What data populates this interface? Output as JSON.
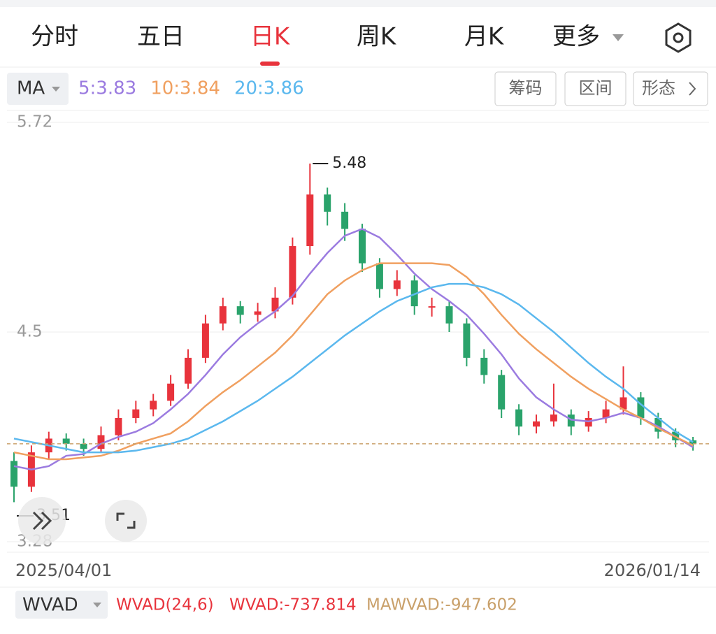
{
  "tabs": [
    "分时",
    "五日",
    "日K",
    "周K",
    "月K",
    "更多"
  ],
  "active_tab": 2,
  "ma_selector": "MA",
  "tools": [
    "筹码",
    "区间",
    "形态"
  ],
  "chart_data": {
    "type": "candlestick",
    "ylim": [
      3.28,
      5.72
    ],
    "yticks": [
      3.28,
      4.5,
      5.72
    ],
    "x_labels": [
      "2025/04/01",
      "2026/01/14"
    ],
    "up_color": "#e8333c",
    "down_color": "#2aa36b",
    "open": [
      3.75,
      3.6,
      3.8,
      3.88,
      3.85,
      3.82,
      3.9,
      4.0,
      4.05,
      4.1,
      4.2,
      4.35,
      4.55,
      4.65,
      4.6,
      4.62,
      4.7,
      5.0,
      5.3,
      5.2,
      5.1,
      4.9,
      4.75,
      4.8,
      4.65,
      4.65,
      4.55,
      4.35,
      4.25,
      4.05,
      3.95,
      3.98,
      4.02,
      3.95,
      4.0,
      4.05,
      4.12,
      4.0,
      3.92,
      3.87
    ],
    "high": [
      3.8,
      3.84,
      3.92,
      3.91,
      3.88,
      3.95,
      4.05,
      4.1,
      4.14,
      4.25,
      4.4,
      4.6,
      4.7,
      4.68,
      4.67,
      4.76,
      5.05,
      5.48,
      5.34,
      5.25,
      5.13,
      4.93,
      4.86,
      4.83,
      4.7,
      4.68,
      4.58,
      4.4,
      4.28,
      4.08,
      4.02,
      4.2,
      4.05,
      4.04,
      4.1,
      4.3,
      4.15,
      4.03,
      3.94,
      3.89
    ],
    "low": [
      3.51,
      3.57,
      3.76,
      3.81,
      3.78,
      3.8,
      3.87,
      3.97,
      4.01,
      4.07,
      4.17,
      4.32,
      4.51,
      4.55,
      4.56,
      4.58,
      4.66,
      4.95,
      5.12,
      5.03,
      4.85,
      4.7,
      4.71,
      4.6,
      4.59,
      4.5,
      4.3,
      4.2,
      4.0,
      3.9,
      3.91,
      3.95,
      3.9,
      3.92,
      3.97,
      4.02,
      3.96,
      3.88,
      3.83,
      3.81
    ],
    "close": [
      3.6,
      3.8,
      3.88,
      3.85,
      3.82,
      3.9,
      4.0,
      4.05,
      4.1,
      4.2,
      4.35,
      4.55,
      4.65,
      4.6,
      4.62,
      4.7,
      5.0,
      5.3,
      5.2,
      5.1,
      4.9,
      4.75,
      4.8,
      4.65,
      4.65,
      4.55,
      4.35,
      4.25,
      4.05,
      3.95,
      3.98,
      4.02,
      3.95,
      4.0,
      4.05,
      4.12,
      4.0,
      3.92,
      3.87,
      3.85
    ],
    "series": [
      {
        "name": "5:3.83",
        "color": "#9b7be0",
        "values": [
          3.72,
          3.7,
          3.72,
          3.78,
          3.79,
          3.85,
          3.89,
          3.92,
          3.97,
          4.05,
          4.14,
          4.25,
          4.37,
          4.47,
          4.55,
          4.62,
          4.71,
          4.84,
          4.96,
          5.06,
          5.1,
          5.05,
          4.95,
          4.84,
          4.75,
          4.68,
          4.6,
          4.49,
          4.37,
          4.23,
          4.12,
          4.05,
          3.99,
          3.98,
          4.0,
          4.03,
          4.0,
          3.95,
          3.89,
          3.83
        ]
      },
      {
        "name": "10:3.84",
        "color": "#f0a060",
        "values": [
          3.8,
          3.78,
          3.76,
          3.76,
          3.77,
          3.78,
          3.81,
          3.85,
          3.88,
          3.91,
          3.98,
          4.07,
          4.15,
          4.22,
          4.3,
          4.38,
          4.48,
          4.6,
          4.72,
          4.8,
          4.86,
          4.9,
          4.9,
          4.9,
          4.9,
          4.89,
          4.82,
          4.72,
          4.6,
          4.49,
          4.4,
          4.32,
          4.24,
          4.17,
          4.11,
          4.05,
          4.0,
          3.94,
          3.89,
          3.84
        ]
      },
      {
        "name": "20:3.86",
        "color": "#5bb8ee",
        "values": [
          3.88,
          3.86,
          3.84,
          3.82,
          3.8,
          3.8,
          3.8,
          3.81,
          3.83,
          3.85,
          3.88,
          3.93,
          3.98,
          4.04,
          4.1,
          4.17,
          4.24,
          4.32,
          4.4,
          4.48,
          4.55,
          4.62,
          4.68,
          4.72,
          4.76,
          4.78,
          4.78,
          4.76,
          4.72,
          4.66,
          4.58,
          4.5,
          4.41,
          4.32,
          4.24,
          4.17,
          4.08,
          4.0,
          3.92,
          3.86
        ]
      }
    ]
  },
  "indicator": {
    "selector": "WVAD",
    "params": "WVAD(24,6)",
    "value": "WVAD:-737.814",
    "ma_value": "MAWVAD:-947.602"
  }
}
